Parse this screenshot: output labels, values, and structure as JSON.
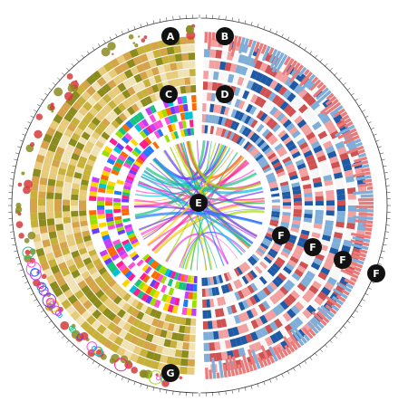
{
  "figure": {
    "title": "",
    "layout": "circos",
    "left_half_palette": [
      "#8b8b1e",
      "#c7b13b",
      "#e7cb7a",
      "#f1e2b5",
      "#d6a24a"
    ],
    "right_half_palette": [
      "#cf5152",
      "#f2a0a0",
      "#7faed9",
      "#1f5aa6",
      "#f7f7f7"
    ],
    "rainbow_palette": [
      "#ff1d8e",
      "#ff6a00",
      "#ffd400",
      "#9be000",
      "#19c37d",
      "#00c2d6",
      "#1e7bff",
      "#6b3cff",
      "#c33cff",
      "#ff4fd8"
    ]
  },
  "callouts": [
    {
      "label": "A",
      "ring": "scatter-ring-left-outer"
    },
    {
      "label": "B",
      "ring": "histogram-ring-right-outer"
    },
    {
      "label": "C",
      "ring": "heatmap-ring-left"
    },
    {
      "label": "D",
      "ring": "heatmap-ring-right"
    },
    {
      "label": "E",
      "ring": "link-center"
    },
    {
      "label": "F",
      "ring": "track-1"
    },
    {
      "label": "F",
      "ring": "track-2"
    },
    {
      "label": "F",
      "ring": "track-3"
    },
    {
      "label": "F",
      "ring": "track-4"
    },
    {
      "label": "G",
      "ring": "bubble-ring-left-bottom"
    }
  ]
}
